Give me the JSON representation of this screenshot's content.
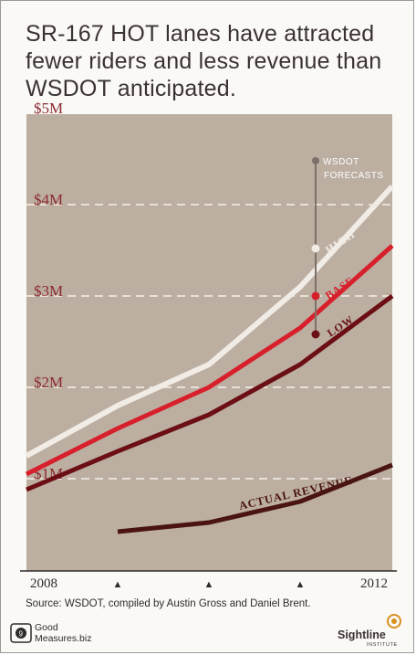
{
  "title": "SR-167 HOT lanes have attracted fewer riders and less revenue than WSDOT anticipated.",
  "source": "Source: WSDOT, compiled by Austin Gross and Daniel Brent.",
  "credit_left": {
    "line1": "Good",
    "line2": "Measures.biz"
  },
  "credit_right": {
    "name": "Sightline",
    "sub": "INSTITUTE"
  },
  "chart_data": {
    "type": "line",
    "x": [
      2008,
      2009,
      2010,
      2011,
      2012
    ],
    "x_tick_labels": [
      "2008",
      "▲",
      "▲",
      "▲",
      "2012"
    ],
    "ylim": [
      0,
      5
    ],
    "y_ticks": [
      1,
      2,
      3,
      4,
      5
    ],
    "y_tick_labels": [
      "$1M",
      "$2M",
      "$3M",
      "$4M",
      "$5M"
    ],
    "grid": true,
    "series": [
      {
        "name": "HIGH",
        "color": "#f1ece6",
        "x": [
          2008,
          2009,
          2010,
          2011,
          2012
        ],
        "values": [
          1.25,
          1.8,
          2.25,
          3.1,
          4.2
        ]
      },
      {
        "name": "BASE",
        "color": "#d7202b",
        "x": [
          2008,
          2009,
          2010,
          2011,
          2012
        ],
        "values": [
          1.05,
          1.55,
          2.0,
          2.65,
          3.55
        ]
      },
      {
        "name": "LOW",
        "color": "#6b0f14",
        "x": [
          2008,
          2009,
          2010,
          2011,
          2012
        ],
        "values": [
          0.88,
          1.3,
          1.7,
          2.25,
          3.0
        ]
      },
      {
        "name": "ACTUAL REVENUE",
        "color": "#4a1414",
        "x": [
          2009,
          2010,
          2011,
          2012
        ],
        "values": [
          0.42,
          0.52,
          0.75,
          1.15
        ]
      }
    ],
    "annotation": {
      "text": "WSDOT FORECASTS",
      "x": 2011.2
    },
    "colors": {
      "plot_background": "#bcaea1",
      "gridline": "#f6f1ea",
      "y_tick_label": "#8c2a32",
      "forecast_marker": "#7d7068"
    }
  }
}
